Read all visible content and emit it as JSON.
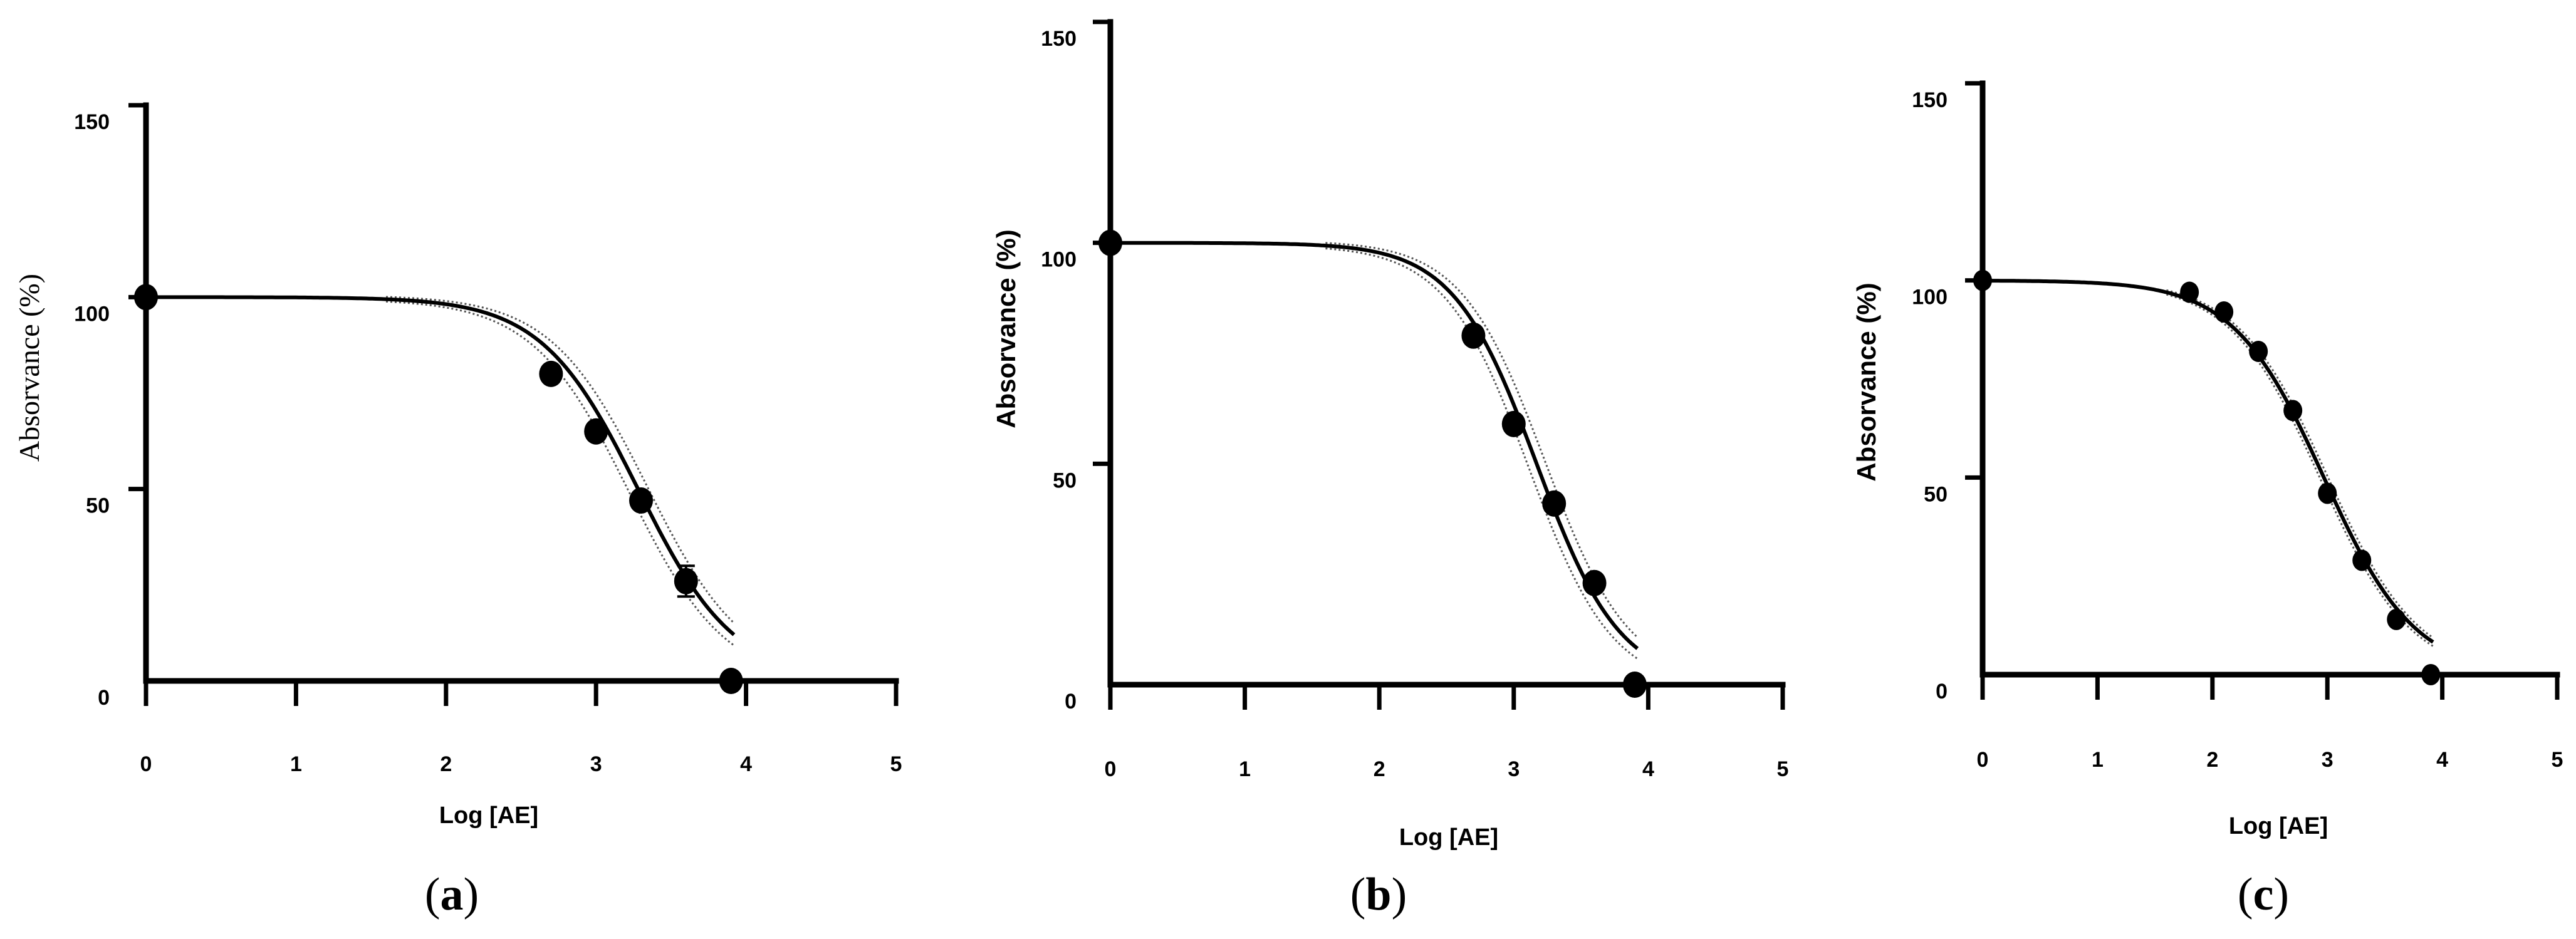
{
  "chart_data": [
    {
      "type": "scatter",
      "panel_label": "a",
      "xlabel": "Log [AE]",
      "ylabel": "Absorvance (%)",
      "xlim": [
        0,
        5
      ],
      "ylim": [
        0,
        150
      ],
      "xticks": [
        0,
        1,
        2,
        3,
        4,
        5
      ],
      "yticks": [
        0,
        50,
        100,
        150
      ],
      "points": [
        {
          "x": 0,
          "y": 100
        },
        {
          "x": 2.7,
          "y": 80
        },
        {
          "x": 3.0,
          "y": 65
        },
        {
          "x": 3.3,
          "y": 47
        },
        {
          "x": 3.6,
          "y": 26,
          "err": 4
        },
        {
          "x": 3.9,
          "y": 0
        }
      ],
      "fit": {
        "top": 100,
        "bottom": 0,
        "logIC50": 3.28,
        "hill": 1.35
      },
      "ci": {
        "upper": {
          "top": 100.5,
          "bottom": 1,
          "logIC50": 3.34,
          "hill": 1.35
        },
        "lower": {
          "top": 99.5,
          "bottom": -1,
          "logIC50": 3.22,
          "hill": 1.35
        }
      }
    },
    {
      "type": "scatter",
      "panel_label": "b",
      "xlabel": "Log [AE]",
      "ylabel": "Absorvance (%)",
      "xlim": [
        0,
        5
      ],
      "ylim": [
        0,
        150
      ],
      "xticks": [
        0,
        1,
        2,
        3,
        4,
        5
      ],
      "yticks": [
        0,
        50,
        100,
        150
      ],
      "points": [
        {
          "x": 0,
          "y": 100
        },
        {
          "x": 2.7,
          "y": 79
        },
        {
          "x": 3.0,
          "y": 59
        },
        {
          "x": 3.3,
          "y": 41
        },
        {
          "x": 3.6,
          "y": 23
        },
        {
          "x": 3.9,
          "y": 0
        }
      ],
      "fit": {
        "top": 100,
        "bottom": 0,
        "logIC50": 3.17,
        "hill": 1.4
      },
      "ci": {
        "upper": {
          "top": 100.5,
          "bottom": 1,
          "logIC50": 3.23,
          "hill": 1.4
        },
        "lower": {
          "top": 99.5,
          "bottom": -1,
          "logIC50": 3.11,
          "hill": 1.4
        }
      }
    },
    {
      "type": "scatter",
      "panel_label": "c",
      "xlabel": "Log [AE]",
      "ylabel": "Absorvance (%)",
      "xlim": [
        0,
        5
      ],
      "ylim": [
        0,
        150
      ],
      "xticks": [
        0,
        1,
        2,
        3,
        4,
        5
      ],
      "yticks": [
        0,
        50,
        100,
        150
      ],
      "points": [
        {
          "x": 0,
          "y": 100
        },
        {
          "x": 1.8,
          "y": 97
        },
        {
          "x": 2.1,
          "y": 92
        },
        {
          "x": 2.4,
          "y": 82
        },
        {
          "x": 2.7,
          "y": 67
        },
        {
          "x": 3.0,
          "y": 46
        },
        {
          "x": 3.3,
          "y": 29
        },
        {
          "x": 3.6,
          "y": 14
        },
        {
          "x": 3.9,
          "y": 0
        }
      ],
      "fit": {
        "top": 100,
        "bottom": 0,
        "logIC50": 2.97,
        "hill": 1.1
      },
      "ci": {
        "upper": {
          "top": 100.3,
          "bottom": 0.5,
          "logIC50": 3.0,
          "hill": 1.1
        },
        "lower": {
          "top": 99.7,
          "bottom": -0.5,
          "logIC50": 2.94,
          "hill": 1.1
        }
      }
    }
  ]
}
